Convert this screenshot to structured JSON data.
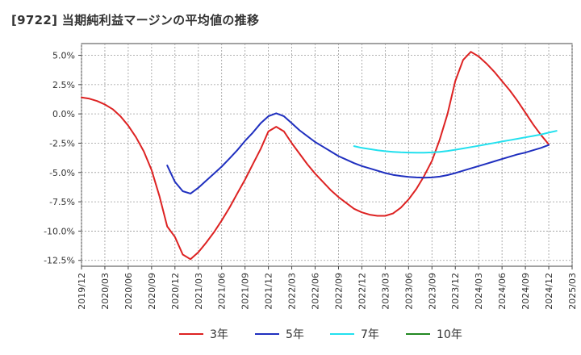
{
  "title": "[9722]  当期純利益マージンの平均値の推移",
  "chart_data": {
    "type": "line",
    "y_ticks": [
      5.0,
      2.5,
      0.0,
      -2.5,
      -5.0,
      -7.5,
      -10.0,
      -12.5
    ],
    "y_tick_labels": [
      "5.0%",
      "2.5%",
      "0.0%",
      "-2.5%",
      "-5.0%",
      "-7.5%",
      "-10.0%",
      "-12.5%"
    ],
    "ylim": [
      -13.0,
      6.0
    ],
    "x_tick_labels": [
      "2019/12",
      "2020/03",
      "2020/06",
      "2020/09",
      "2020/12",
      "2021/03",
      "2021/06",
      "2021/09",
      "2021/12",
      "2022/03",
      "2022/06",
      "2022/09",
      "2022/12",
      "2023/03",
      "2023/06",
      "2023/09",
      "2023/12",
      "2024/03",
      "2024/06",
      "2024/09",
      "2024/12",
      "2025/03"
    ],
    "grid": true,
    "legend_position": "bottom",
    "series": [
      {
        "name": "3年",
        "color": "#dd2222",
        "points": [
          [
            "2019/12",
            1.4
          ],
          [
            "2020/01",
            1.3
          ],
          [
            "2020/02",
            1.1
          ],
          [
            "2020/03",
            0.8
          ],
          [
            "2020/04",
            0.4
          ],
          [
            "2020/05",
            -0.2
          ],
          [
            "2020/06",
            -1.0
          ],
          [
            "2020/07",
            -2.0
          ],
          [
            "2020/08",
            -3.2
          ],
          [
            "2020/09",
            -4.8
          ],
          [
            "2020/10",
            -7.0
          ],
          [
            "2020/11",
            -9.6
          ],
          [
            "2020/12",
            -10.5
          ],
          [
            "2021/01",
            -12.0
          ],
          [
            "2021/02",
            -12.4
          ],
          [
            "2021/03",
            -11.8
          ],
          [
            "2021/04",
            -11.0
          ],
          [
            "2021/05",
            -10.1
          ],
          [
            "2021/06",
            -9.1
          ],
          [
            "2021/07",
            -8.0
          ],
          [
            "2021/08",
            -6.8
          ],
          [
            "2021/09",
            -5.6
          ],
          [
            "2021/10",
            -4.3
          ],
          [
            "2021/11",
            -3.0
          ],
          [
            "2021/12",
            -1.5
          ],
          [
            "2022/01",
            -1.1
          ],
          [
            "2022/02",
            -1.5
          ],
          [
            "2022/03",
            -2.5
          ],
          [
            "2022/04",
            -3.4
          ],
          [
            "2022/05",
            -4.3
          ],
          [
            "2022/06",
            -5.1
          ],
          [
            "2022/07",
            -5.8
          ],
          [
            "2022/08",
            -6.5
          ],
          [
            "2022/09",
            -7.1
          ],
          [
            "2022/10",
            -7.6
          ],
          [
            "2022/11",
            -8.1
          ],
          [
            "2022/12",
            -8.4
          ],
          [
            "2023/01",
            -8.6
          ],
          [
            "2023/02",
            -8.7
          ],
          [
            "2023/03",
            -8.7
          ],
          [
            "2023/04",
            -8.5
          ],
          [
            "2023/05",
            -8.0
          ],
          [
            "2023/06",
            -7.3
          ],
          [
            "2023/07",
            -6.4
          ],
          [
            "2023/08",
            -5.3
          ],
          [
            "2023/09",
            -4.0
          ],
          [
            "2023/10",
            -2.2
          ],
          [
            "2023/11",
            0.0
          ],
          [
            "2023/12",
            2.8
          ],
          [
            "2024/01",
            4.6
          ],
          [
            "2024/02",
            5.3
          ],
          [
            "2024/03",
            4.9
          ],
          [
            "2024/04",
            4.3
          ],
          [
            "2024/05",
            3.6
          ],
          [
            "2024/06",
            2.8
          ],
          [
            "2024/07",
            2.0
          ],
          [
            "2024/08",
            1.1
          ],
          [
            "2024/09",
            0.1
          ],
          [
            "2024/10",
            -0.9
          ],
          [
            "2024/11",
            -1.8
          ],
          [
            "2024/12",
            -2.6
          ]
        ]
      },
      {
        "name": "5年",
        "color": "#1f2fbf",
        "points": [
          [
            "2020/11",
            -4.4
          ],
          [
            "2020/12",
            -5.8
          ],
          [
            "2021/01",
            -6.6
          ],
          [
            "2021/02",
            -6.8
          ],
          [
            "2021/03",
            -6.3
          ],
          [
            "2021/04",
            -5.7
          ],
          [
            "2021/05",
            -5.1
          ],
          [
            "2021/06",
            -4.5
          ],
          [
            "2021/07",
            -3.8
          ],
          [
            "2021/08",
            -3.1
          ],
          [
            "2021/09",
            -2.3
          ],
          [
            "2021/10",
            -1.6
          ],
          [
            "2021/11",
            -0.8
          ],
          [
            "2021/12",
            -0.2
          ],
          [
            "2022/01",
            0.05
          ],
          [
            "2022/02",
            -0.2
          ],
          [
            "2022/03",
            -0.8
          ],
          [
            "2022/04",
            -1.4
          ],
          [
            "2022/05",
            -1.9
          ],
          [
            "2022/06",
            -2.4
          ],
          [
            "2022/07",
            -2.8
          ],
          [
            "2022/08",
            -3.2
          ],
          [
            "2022/09",
            -3.6
          ],
          [
            "2022/10",
            -3.9
          ],
          [
            "2022/11",
            -4.2
          ],
          [
            "2022/12",
            -4.45
          ],
          [
            "2023/01",
            -4.65
          ],
          [
            "2023/02",
            -4.85
          ],
          [
            "2023/03",
            -5.05
          ],
          [
            "2023/04",
            -5.2
          ],
          [
            "2023/05",
            -5.3
          ],
          [
            "2023/06",
            -5.37
          ],
          [
            "2023/07",
            -5.42
          ],
          [
            "2023/08",
            -5.44
          ],
          [
            "2023/09",
            -5.42
          ],
          [
            "2023/10",
            -5.35
          ],
          [
            "2023/11",
            -5.22
          ],
          [
            "2023/12",
            -5.05
          ],
          [
            "2024/01",
            -4.85
          ],
          [
            "2024/02",
            -4.65
          ],
          [
            "2024/03",
            -4.45
          ],
          [
            "2024/04",
            -4.25
          ],
          [
            "2024/05",
            -4.05
          ],
          [
            "2024/06",
            -3.85
          ],
          [
            "2024/07",
            -3.65
          ],
          [
            "2024/08",
            -3.45
          ],
          [
            "2024/09",
            -3.3
          ],
          [
            "2024/10",
            -3.1
          ],
          [
            "2024/11",
            -2.9
          ],
          [
            "2024/12",
            -2.65
          ]
        ]
      },
      {
        "name": "7年",
        "color": "#22e0ee",
        "points": [
          [
            "2022/11",
            -2.75
          ],
          [
            "2022/12",
            -2.9
          ],
          [
            "2023/01",
            -3.0
          ],
          [
            "2023/02",
            -3.1
          ],
          [
            "2023/03",
            -3.18
          ],
          [
            "2023/04",
            -3.24
          ],
          [
            "2023/05",
            -3.28
          ],
          [
            "2023/06",
            -3.3
          ],
          [
            "2023/07",
            -3.31
          ],
          [
            "2023/08",
            -3.31
          ],
          [
            "2023/09",
            -3.29
          ],
          [
            "2023/10",
            -3.24
          ],
          [
            "2023/11",
            -3.16
          ],
          [
            "2023/12",
            -3.06
          ],
          [
            "2024/01",
            -2.95
          ],
          [
            "2024/02",
            -2.83
          ],
          [
            "2024/03",
            -2.72
          ],
          [
            "2024/04",
            -2.6
          ],
          [
            "2024/05",
            -2.48
          ],
          [
            "2024/06",
            -2.36
          ],
          [
            "2024/07",
            -2.24
          ],
          [
            "2024/08",
            -2.12
          ],
          [
            "2024/09",
            -2.0
          ],
          [
            "2024/10",
            -1.88
          ],
          [
            "2024/11",
            -1.76
          ],
          [
            "2024/12",
            -1.6
          ],
          [
            "2025/01",
            -1.45
          ]
        ]
      },
      {
        "name": "10年",
        "color": "#228822",
        "points": []
      }
    ]
  }
}
